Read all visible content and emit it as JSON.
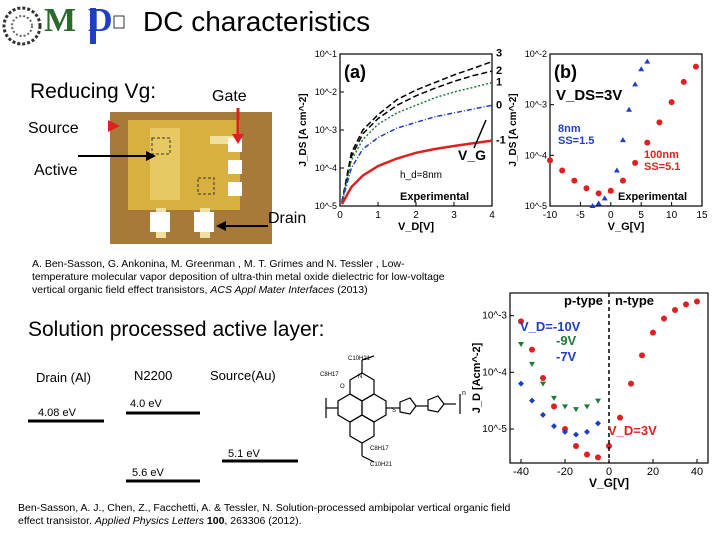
{
  "slide": {
    "title": "DC characteristics",
    "reducing_vg": "Reducing Vg:",
    "solution_heading": "Solution processed active layer:"
  },
  "logo": {
    "letter_m": "M",
    "letter_d": "D"
  },
  "device_photo": {
    "gate": "Gate",
    "source": "Source",
    "active": "Active",
    "drain": "Drain"
  },
  "citation_1": {
    "text": "A. Ben-Sasson, G. Ankonina, M. Greenman , M. T. Grimes and N. Tessler , Low-temperature molecular vapor deposition of ultra-thin metal oxide dielectric for low-voltage vertical organic field effect transistors, ",
    "journal": "ACS Appl Mater Interfaces",
    "year": " (2013)"
  },
  "citation_2": {
    "text": "Ben-Sasson, A. J., Chen, Z., Facchetti, A. & Tessler, N. Solution-processed ambipolar vertical organic field effect transistor. ",
    "journal": "Applied Physics Letters",
    "volume": " 100",
    "rest": ", 263306 (2012)."
  },
  "energy_diagram": {
    "drain": "Drain (Al)",
    "n2200": "N2200",
    "source": "Source(Au)",
    "drain_level": "4.08 eV",
    "lumo": "4.0 eV",
    "source_level": "5.1 eV",
    "homo": "5.6 eV"
  },
  "molecule": {
    "c10h21_top": "C10H21",
    "c8h17_left": "C8H17",
    "c8h17_right": "C8H17",
    "c10h21_bottom": "C10H21",
    "o": "O",
    "n": "N",
    "s": "S",
    "n_label": "n"
  },
  "colors": {
    "red": "#e02020",
    "blue": "#1f3fc0",
    "green": "#1f7a3a",
    "black": "#000000",
    "photo_bg": "#b08040",
    "electrode": "#f0e0a0"
  },
  "chart_data": [
    {
      "type": "line",
      "panel": "(a)",
      "xlabel": "V_D[V]",
      "ylabel": "J_DS [A cm^-2]",
      "x_ticks": [
        "0",
        "1",
        "2",
        "3",
        "4"
      ],
      "y_ticks": [
        "10^-1",
        "10^-2",
        "10^-3",
        "10^-4",
        "10^-5"
      ],
      "xlim": [
        0,
        4
      ],
      "ylim_log10": [
        -5,
        -1
      ],
      "scale_y": "log",
      "annotations": {
        "hd": "h_d=8nm",
        "experimental": "Experimental",
        "vg_arrow": "V_G"
      },
      "series": [
        {
          "name": "3",
          "color": "#000000",
          "x": [
            0.05,
            0.3,
            0.6,
            1,
            1.5,
            2,
            2.5,
            3,
            3.5,
            4
          ],
          "y": [
            -4.9,
            -3.6,
            -3.0,
            -2.6,
            -2.2,
            -1.95,
            -1.75,
            -1.55,
            -1.38,
            -1.2
          ]
        },
        {
          "name": "2",
          "color": "#000000",
          "x": [
            0.05,
            0.3,
            0.6,
            1,
            1.5,
            2,
            2.5,
            3,
            3.5,
            4
          ],
          "y": [
            -4.9,
            -3.7,
            -3.1,
            -2.7,
            -2.35,
            -2.1,
            -1.9,
            -1.72,
            -1.57,
            -1.45
          ]
        },
        {
          "name": "1",
          "color": "#1f7a3a",
          "x": [
            0.05,
            0.3,
            0.6,
            1,
            1.5,
            2,
            2.5,
            3,
            3.5,
            4
          ],
          "y": [
            -4.9,
            -3.8,
            -3.25,
            -2.85,
            -2.55,
            -2.35,
            -2.15,
            -2.0,
            -1.88,
            -1.75
          ]
        },
        {
          "name": "0",
          "color": "#1f3fc0",
          "x": [
            0.05,
            0.3,
            0.6,
            1,
            1.5,
            2,
            2.5,
            3,
            3.5,
            4
          ],
          "y": [
            -4.9,
            -4.0,
            -3.5,
            -3.2,
            -2.95,
            -2.8,
            -2.65,
            -2.55,
            -2.45,
            -2.35
          ]
        },
        {
          "name": "-1",
          "color": "#e02020",
          "x": [
            0.05,
            0.3,
            0.6,
            1,
            1.5,
            2,
            2.5,
            3,
            3.5,
            4
          ],
          "y": [
            -4.95,
            -4.5,
            -4.2,
            -3.95,
            -3.75,
            -3.6,
            -3.5,
            -3.42,
            -3.35,
            -3.28
          ]
        }
      ]
    },
    {
      "type": "scatter",
      "panel": "(b)",
      "xlabel": "V_G[V]",
      "ylabel": "J_DS [A cm^-2]",
      "x_ticks": [
        "-10",
        "-5",
        "0",
        "5",
        "10",
        "15"
      ],
      "y_ticks": [
        "10^-2",
        "10^-3",
        "10^-4",
        "10^-5"
      ],
      "xlim": [
        -10,
        15
      ],
      "ylim_log10": [
        -5,
        -2
      ],
      "scale_y": "log",
      "annotations": {
        "vds": "V_DS=3V",
        "ss8_a": "8nm",
        "ss8_b": "SS=1.5",
        "ss100_a": "100nm",
        "ss100_b": "SS=5.1",
        "experimental": "Experimental"
      },
      "series": [
        {
          "name": "8nm",
          "color": "#1f3fc0",
          "x": [
            -3,
            -2,
            -1,
            0,
            1,
            2,
            3,
            4,
            5,
            6
          ],
          "y": [
            -5.0,
            -4.95,
            -4.85,
            -4.7,
            -4.3,
            -3.7,
            -3.1,
            -2.6,
            -2.3,
            -2.15
          ]
        },
        {
          "name": "100nm",
          "color": "#e02020",
          "x": [
            -10,
            -8,
            -6,
            -4,
            -2,
            0,
            2,
            4,
            6,
            8,
            10,
            12,
            14
          ],
          "y": [
            -4.1,
            -4.3,
            -4.5,
            -4.65,
            -4.75,
            -4.7,
            -4.5,
            -4.15,
            -3.75,
            -3.35,
            -2.95,
            -2.55,
            -2.25
          ]
        }
      ]
    },
    {
      "type": "scatter",
      "panel": "ambipolar",
      "xlabel": "V_G[V]",
      "ylabel": "J_D [Acm^-2]",
      "x_ticks": [
        "-40",
        "-20",
        "0",
        "20",
        "40"
      ],
      "y_ticks": [
        "10^-3",
        "10^-4",
        "10^-5"
      ],
      "xlim": [
        -45,
        45
      ],
      "ylim_log10": [
        -5.6,
        -2.6
      ],
      "scale_y": "log",
      "annotations": {
        "p_type": "p-type",
        "n_type": "n-type",
        "vd_left": "V_D=-10V",
        "v9": "-9V",
        "v7": "-7V",
        "vd_right": "V_D=3V"
      },
      "series": [
        {
          "name": "V_D=-10V",
          "color": "#e02020",
          "x": [
            -40,
            -35,
            -30,
            -25,
            -20,
            -15,
            -10,
            -5,
            0,
            5,
            10,
            15,
            20,
            25,
            30,
            35,
            40
          ],
          "y": [
            -3.1,
            -3.6,
            -4.1,
            -4.6,
            -5.0,
            -5.3,
            -5.45,
            -5.5,
            -5.3,
            -4.8,
            -4.2,
            -3.7,
            -3.3,
            -3.05,
            -2.9,
            -2.8,
            -2.75
          ]
        },
        {
          "name": "-9V",
          "color": "#1f7a3a",
          "x": [
            -40,
            -35,
            -30,
            -25,
            -20,
            -15,
            -10,
            -5
          ],
          "y": [
            -3.5,
            -3.85,
            -4.2,
            -4.45,
            -4.6,
            -4.65,
            -4.6,
            -4.5
          ]
        },
        {
          "name": "-7V",
          "color": "#1f3fc0",
          "x": [
            -40,
            -35,
            -30,
            -25,
            -20,
            -15,
            -10,
            -5
          ],
          "y": [
            -4.2,
            -4.5,
            -4.75,
            -4.95,
            -5.05,
            -5.1,
            -5.05,
            -4.9
          ]
        }
      ]
    }
  ]
}
